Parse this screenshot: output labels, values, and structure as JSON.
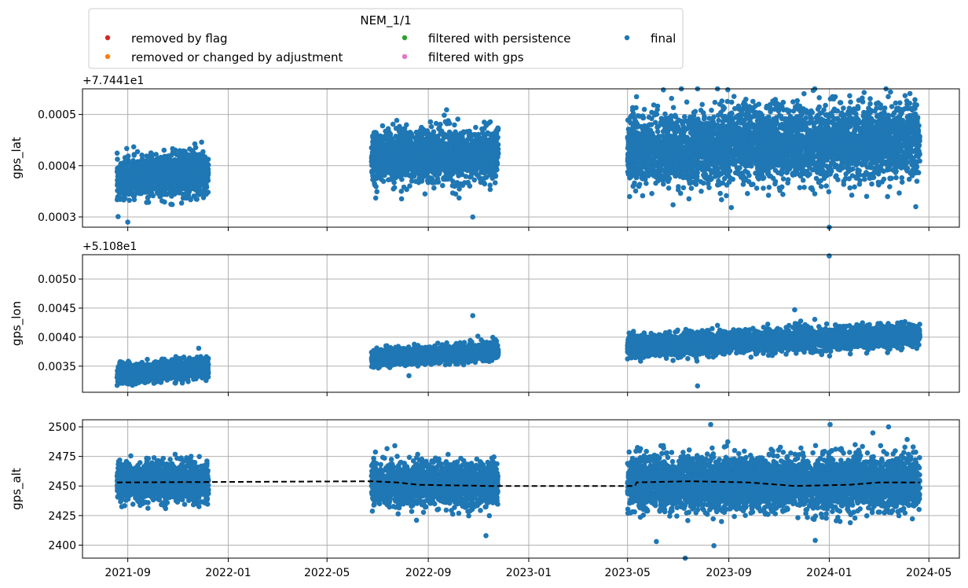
{
  "chart_data": {
    "type": "scatter",
    "legend": {
      "title": "NEM_1/1",
      "placement": "top-left, above plots",
      "entries": [
        {
          "label": "removed by flag",
          "color": "#d62728"
        },
        {
          "label": "filtered with persistence",
          "color": "#2ca02c"
        },
        {
          "label": "final",
          "color": "#1f77b4"
        },
        {
          "label": "removed or changed by adjustment",
          "color": "#ff7f0e"
        },
        {
          "label": "filtered with gps",
          "color": "#e377c2"
        }
      ]
    },
    "x_ticks": [
      "2021-09",
      "2022-01",
      "2022-05",
      "2022-09",
      "2023-01",
      "2023-05",
      "2023-09",
      "2024-01",
      "2024-05"
    ],
    "x_range": [
      "2021-07-08",
      "2024-06-07"
    ],
    "deployments": [
      {
        "start": "2021-08-19",
        "end": "2021-12-08"
      },
      {
        "start": "2022-06-24",
        "end": "2022-11-25"
      },
      {
        "start": "2023-05-01",
        "end": "2024-04-20"
      }
    ],
    "panels": [
      {
        "ylabel": "gps_lat",
        "offset_label": "+7.7441e1",
        "ylim": [
          0.00028,
          0.00055
        ],
        "yticks": [
          0.0003,
          0.0004,
          0.0005
        ],
        "ytick_labels": [
          "0.0003",
          "0.0004",
          "0.0005"
        ],
        "series": [
          {
            "segment": 0,
            "center_start": 0.00037,
            "center_end": 0.00039,
            "spread": 2e-05
          },
          {
            "segment": 1,
            "center_start": 0.00042,
            "center_end": 0.00042,
            "spread": 2.5e-05
          },
          {
            "segment": 2,
            "center_start": 0.00043,
            "center_end": 0.00045,
            "spread": 3.5e-05
          }
        ],
        "outliers": [
          [
            "2021-09-01",
            0.00029
          ],
          [
            "2022-10-25",
            0.0003
          ],
          [
            "2024-01-01",
            0.00028
          ],
          [
            "2024-04-15",
            0.00032
          ],
          [
            "2023-07-25",
            0.00055
          ],
          [
            "2024-03-10",
            0.00055
          ]
        ]
      },
      {
        "ylabel": "gps_lon",
        "offset_label": "+5.108e1",
        "ylim": [
          0.00305,
          0.00542
        ],
        "yticks": [
          0.0035,
          0.004,
          0.0045,
          0.005
        ],
        "ytick_labels": [
          "0.0035",
          "0.0040",
          "0.0045",
          "0.0050"
        ],
        "series": [
          {
            "segment": 0,
            "center_start": 0.00335,
            "center_end": 0.00348,
            "spread": 8e-05
          },
          {
            "segment": 1,
            "center_start": 0.00363,
            "center_end": 0.00377,
            "spread": 7e-05
          },
          {
            "segment": 2,
            "center_start": 0.00385,
            "center_end": 0.00403,
            "spread": 9e-05
          }
        ],
        "outliers": [
          [
            "2024-01-01",
            0.0054
          ],
          [
            "2023-11-20",
            0.00447
          ],
          [
            "2022-10-25",
            0.00437
          ],
          [
            "2023-07-25",
            0.00316
          ]
        ]
      },
      {
        "ylabel": "gps_alt",
        "offset_label": "",
        "ylim": [
          2389,
          2506
        ],
        "yticks": [
          2400,
          2425,
          2450,
          2475,
          2500
        ],
        "ytick_labels": [
          "2400",
          "2425",
          "2450",
          "2475",
          "2500"
        ],
        "series": [
          {
            "segment": 0,
            "center_start": 2453,
            "center_end": 2453,
            "spread": 8
          },
          {
            "segment": 1,
            "center_start": 2452,
            "center_end": 2451,
            "spread": 9
          },
          {
            "segment": 2,
            "center_start": 2452,
            "center_end": 2453,
            "spread": 11
          }
        ],
        "outliers": [
          [
            "2024-01-02",
            2502
          ],
          [
            "2023-08-10",
            2502
          ],
          [
            "2023-07-10",
            2389
          ],
          [
            "2023-06-05",
            2403
          ],
          [
            "2023-12-15",
            2404
          ],
          [
            "2022-11-10",
            2408
          ]
        ],
        "reference_line": {
          "style": "dashed",
          "color": "#000000",
          "points": [
            [
              "2021-08-19",
              2453
            ],
            [
              "2022-06-24",
              2454
            ],
            [
              "2022-07-25",
              2453
            ],
            [
              "2022-08-20",
              2451
            ],
            [
              "2022-11-15",
              2450
            ],
            [
              "2023-05-10",
              2450
            ],
            [
              "2023-05-12",
              2453
            ],
            [
              "2023-07-15",
              2454
            ],
            [
              "2023-09-25",
              2453
            ],
            [
              "2023-11-20",
              2450
            ],
            [
              "2024-01-25",
              2451
            ],
            [
              "2024-03-01",
              2453
            ],
            [
              "2024-04-20",
              2453
            ]
          ]
        }
      }
    ],
    "grid": true
  }
}
